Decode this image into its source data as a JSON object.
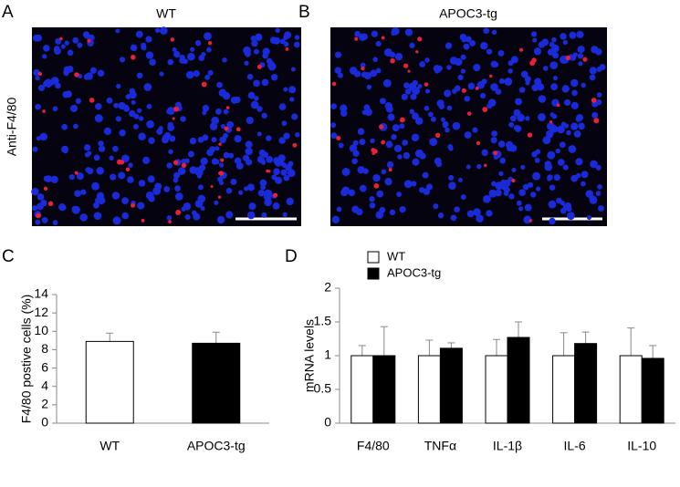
{
  "images": [
    {
      "label": "A",
      "title": "WT"
    },
    {
      "label": "B",
      "title": "APOC3-tg"
    }
  ],
  "image_ylabel": "Anti-F4/80",
  "chart_data": [
    {
      "type": "bar",
      "label": "C",
      "ylabel": "F4/80 postive cells (%)",
      "categories": [
        "WT",
        "APOC3-tg"
      ],
      "values": [
        8.9,
        8.7
      ],
      "errors": [
        0.9,
        1.2
      ],
      "colors": [
        "#ffffff",
        "#000000"
      ],
      "ylim": [
        0,
        14
      ],
      "yticks": [
        0,
        2,
        4,
        6,
        8,
        10,
        12,
        14
      ]
    },
    {
      "type": "bar",
      "label": "D",
      "ylabel": "mRNA levels",
      "categories": [
        "F4/80",
        "TNFα",
        "IL-1β",
        "IL-6",
        "IL-10"
      ],
      "series": [
        {
          "name": "WT",
          "color": "#ffffff",
          "values": [
            1,
            1,
            1,
            1,
            1
          ],
          "errors": [
            0.15,
            0.23,
            0.24,
            0.34,
            0.41
          ]
        },
        {
          "name": "APOC3-tg",
          "color": "#000000",
          "values": [
            1.0,
            1.11,
            1.27,
            1.18,
            0.96
          ],
          "errors": [
            0.43,
            0.08,
            0.23,
            0.17,
            0.19
          ]
        }
      ],
      "ylim": [
        0,
        2
      ],
      "yticks": [
        0,
        0.5,
        1,
        1.5,
        2
      ],
      "legend": "top-left"
    }
  ]
}
